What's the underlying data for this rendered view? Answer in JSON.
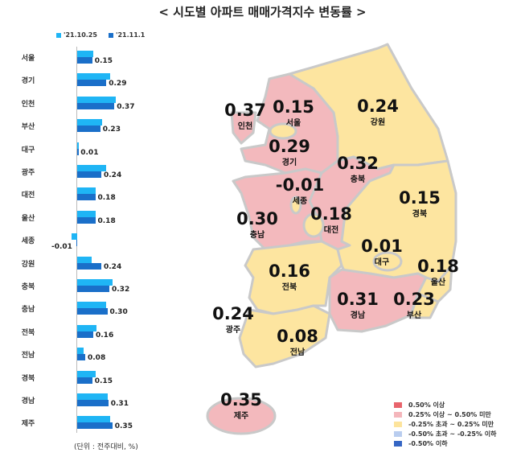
{
  "title": "< 시도별 아파트 매매가격지수 변동률 >",
  "chart_data": {
    "type": "bar",
    "orientation": "horizontal",
    "title": "시도별 아파트 매매가격지수 변동률",
    "unit": "(단위 : 전주대비, %)",
    "legend_position": "top",
    "categories": [
      "서울",
      "경기",
      "인천",
      "부산",
      "대구",
      "광주",
      "대전",
      "울산",
      "세종",
      "강원",
      "충북",
      "충남",
      "전북",
      "전남",
      "경북",
      "경남",
      "제주"
    ],
    "series": [
      {
        "name": "'21.10.25",
        "color": "#1fb5f5",
        "values": [
          0.16,
          0.33,
          0.38,
          0.25,
          0.01,
          0.29,
          0.18,
          0.18,
          -0.06,
          0.14,
          0.35,
          0.29,
          0.19,
          0.06,
          0.18,
          0.3,
          0.33
        ]
      },
      {
        "name": "'21.11.1",
        "color": "#1a6fc9",
        "values": [
          0.15,
          0.29,
          0.37,
          0.23,
          0.01,
          0.24,
          0.18,
          0.18,
          -0.01,
          0.24,
          0.32,
          0.3,
          0.16,
          0.08,
          0.15,
          0.31,
          0.35
        ]
      }
    ],
    "value_labels": [
      "0.15",
      "0.29",
      "0.37",
      "0.23",
      "0.01",
      "0.24",
      "0.18",
      "0.18",
      "-0.01",
      "0.24",
      "0.32",
      "0.30",
      "0.16",
      "0.08",
      "0.15",
      "0.31",
      "0.35"
    ]
  },
  "map": {
    "regions": [
      {
        "name": "인천",
        "value": "0.37",
        "cls": "pink"
      },
      {
        "name": "서울",
        "value": "0.15",
        "cls": "pink"
      },
      {
        "name": "강원",
        "value": "0.24",
        "cls": "yellow"
      },
      {
        "name": "경기",
        "value": "0.29",
        "cls": "pink"
      },
      {
        "name": "충북",
        "value": "0.32",
        "cls": "pink"
      },
      {
        "name": "세종",
        "value": "-0.01",
        "cls": "blue"
      },
      {
        "name": "경북",
        "value": "0.15",
        "cls": "yellow"
      },
      {
        "name": "충남",
        "value": "0.30",
        "cls": "pink"
      },
      {
        "name": "대전",
        "value": "0.18",
        "cls": "yellow"
      },
      {
        "name": "대구",
        "value": "0.01",
        "cls": "yellow"
      },
      {
        "name": "전북",
        "value": "0.16",
        "cls": "yellow"
      },
      {
        "name": "울산",
        "value": "0.18",
        "cls": "yellow"
      },
      {
        "name": "경남",
        "value": "0.31",
        "cls": "pink"
      },
      {
        "name": "부산",
        "value": "0.23",
        "cls": "yellow"
      },
      {
        "name": "광주",
        "value": "0.24",
        "cls": "yellow"
      },
      {
        "name": "전남",
        "value": "0.08",
        "cls": "yellow"
      },
      {
        "name": "제주",
        "value": "0.35",
        "cls": "pink"
      }
    ],
    "legend": [
      {
        "label": "0.50% 이상",
        "color": "#e8646c"
      },
      {
        "label": "0.25% 이상 ~ 0.50% 미만",
        "color": "#f4b6bb"
      },
      {
        "label": "-0.25% 초과 ~ 0.25% 미만",
        "color": "#fde49c"
      },
      {
        "label": "-0.50% 초과 ~ -0.25% 이하",
        "color": "#b9cdef"
      },
      {
        "label": "-0.50% 이하",
        "color": "#3566c4"
      }
    ],
    "colors": {
      "pink": "#f3b9bd",
      "yellow": "#fde5a0",
      "border": "#c9c9c9"
    }
  }
}
